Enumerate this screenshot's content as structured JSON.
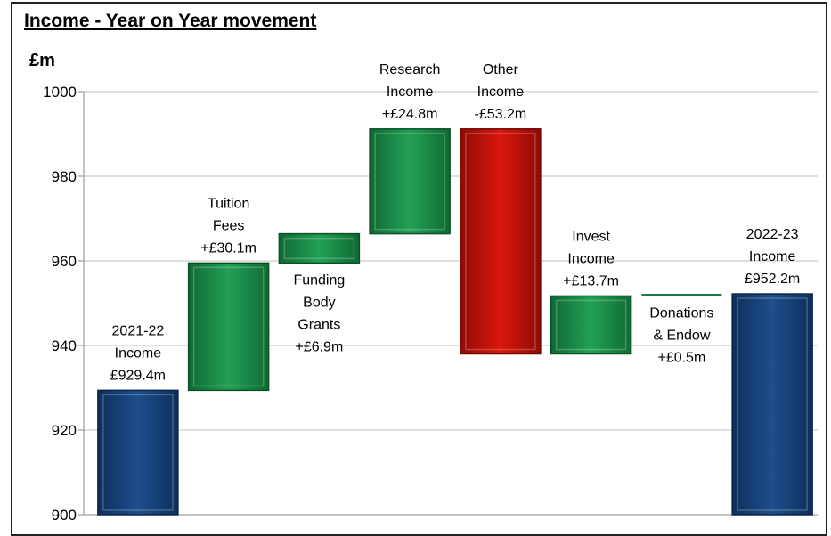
{
  "chart_data": {
    "type": "waterfall",
    "title": "Income - Year on Year movement",
    "ylabel": "£m",
    "ylim": [
      900,
      1000
    ],
    "yticks": [
      900,
      920,
      940,
      960,
      980,
      1000
    ],
    "grid": true,
    "categories": [
      "2021-22 Income",
      "Tuition Fees",
      "Funding Body Grants",
      "Research Income",
      "Other Income",
      "Invest Income",
      "Donations & Endow",
      "2022-23 Income"
    ],
    "bars": [
      {
        "kind": "total",
        "start": 900,
        "end": 929.4,
        "label": [
          "2021-22",
          "Income",
          "£929.4m"
        ],
        "label_pos": "above",
        "color": "#1f4e8c"
      },
      {
        "kind": "increase",
        "start": 929.4,
        "end": 959.5,
        "label": [
          "Tuition",
          "Fees",
          "+£30.1m"
        ],
        "label_pos": "above",
        "color": "#1e8c4a"
      },
      {
        "kind": "increase",
        "start": 959.5,
        "end": 966.4,
        "label": [
          "Funding",
          "Body",
          "Grants",
          "+£6.9m"
        ],
        "label_pos": "below",
        "color": "#1e8c4a"
      },
      {
        "kind": "increase",
        "start": 966.4,
        "end": 991.2,
        "label": [
          "Research",
          "Income",
          "+£24.8m"
        ],
        "label_pos": "above",
        "color": "#1e8c4a"
      },
      {
        "kind": "decrease",
        "start": 991.2,
        "end": 938.0,
        "label": [
          "Other",
          "Income",
          "-£53.2m"
        ],
        "label_pos": "above",
        "color": "#c0130b"
      },
      {
        "kind": "increase",
        "start": 938.0,
        "end": 951.7,
        "label": [
          "Invest",
          "Income",
          "+£13.7m"
        ],
        "label_pos": "above",
        "color": "#1e8c4a"
      },
      {
        "kind": "increase",
        "start": 951.7,
        "end": 952.2,
        "label": [
          "Donations",
          "& Endow",
          "+£0.5m"
        ],
        "label_pos": "below",
        "color": "#1e7a45"
      },
      {
        "kind": "total",
        "start": 900,
        "end": 952.2,
        "label": [
          "2022-23",
          "Income",
          "£952.2m"
        ],
        "label_pos": "above",
        "color": "#1f4e8c"
      }
    ]
  }
}
